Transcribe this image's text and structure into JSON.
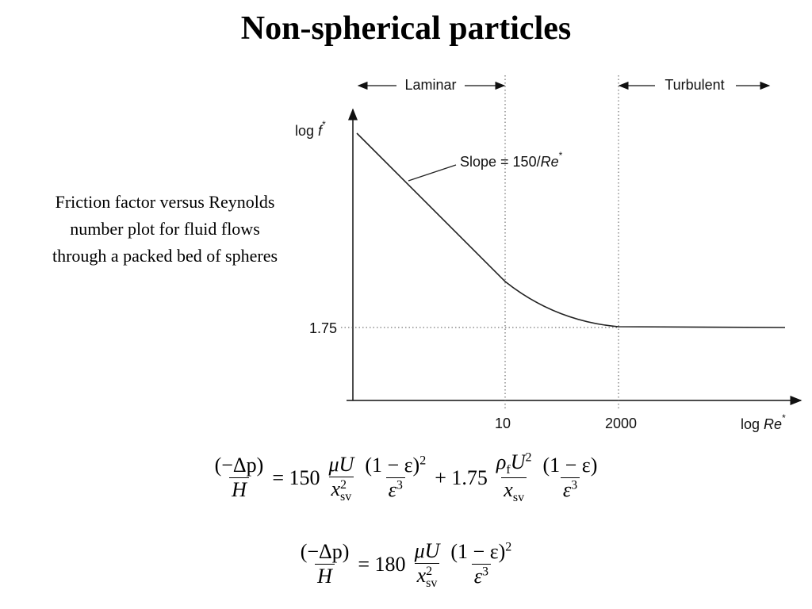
{
  "title": "Non-spherical particles",
  "caption": {
    "lines": [
      "Friction factor versus Reynolds",
      "number plot for fluid flows",
      "through a packed bed of spheres"
    ]
  },
  "diagram": {
    "laminar": "Laminar",
    "turbulent": "Turbulent",
    "y_label": {
      "prefix": "log",
      "var": "f",
      "sup": "*"
    },
    "x_label": {
      "prefix": "log",
      "var": "Re",
      "sup": "*"
    },
    "slope_label": {
      "prefix": "Slope = 150/",
      "var": "Re",
      "sup": "*"
    },
    "x_tick_labels": [
      "10",
      "2000"
    ],
    "y_tick_label": "1.75"
  },
  "equations": [
    {
      "items": [
        {
          "num": [
            {
              "text": "(−Δp)"
            }
          ],
          "den": [
            {
              "text": "H",
              "italic": true
            }
          ]
        },
        {
          "text": "= 150"
        },
        {
          "num": [
            {
              "text": "μU",
              "italic": true
            }
          ],
          "den": [
            {
              "text": "x",
              "italic": true,
              "sup": "2",
              "sub": "sv"
            }
          ]
        },
        {
          "num": [
            {
              "text": "(1 − ε)",
              "sup": "2"
            }
          ],
          "den": [
            {
              "text": "ε",
              "italic": true,
              "sup": "3"
            }
          ]
        },
        {
          "text": "+ 1.75"
        },
        {
          "num": [
            {
              "text": "ρ",
              "italic": true,
              "sub": "f"
            },
            {
              "text": "U",
              "italic": true,
              "sup": "2"
            }
          ],
          "den": [
            {
              "text": "x",
              "italic": true,
              "sub": "sv"
            }
          ]
        },
        {
          "num": [
            {
              "text": "(1 − ε)"
            }
          ],
          "den": [
            {
              "text": "ε",
              "italic": true,
              "sup": "3"
            }
          ]
        }
      ]
    },
    {
      "items": [
        {
          "num": [
            {
              "text": "(−Δp)"
            }
          ],
          "den": [
            {
              "text": "H",
              "italic": true
            }
          ]
        },
        {
          "text": "= 180"
        },
        {
          "num": [
            {
              "text": "μU",
              "italic": true
            }
          ],
          "den": [
            {
              "text": "x",
              "italic": true,
              "sup": "2",
              "sub": "sv"
            }
          ]
        },
        {
          "num": [
            {
              "text": "(1 − ε)",
              "sup": "2"
            }
          ],
          "den": [
            {
              "text": "ε",
              "italic": true,
              "sup": "3"
            }
          ]
        }
      ]
    }
  ]
}
